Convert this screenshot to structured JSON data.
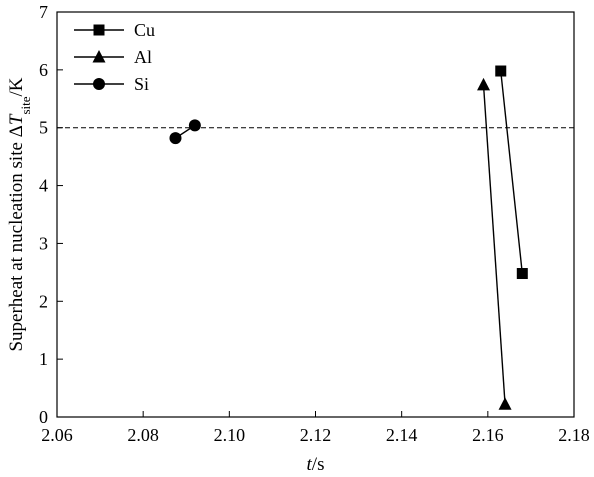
{
  "chart_data": {
    "type": "line",
    "xlabel": {
      "italic": "t",
      "rest": "/s"
    },
    "ylabel": {
      "prefix": "Superheat at nucleation site Δ",
      "italic": "T",
      "sub": "site",
      "suffix": "/K"
    },
    "xlim": [
      2.06,
      2.18
    ],
    "ylim": [
      0,
      7
    ],
    "x_ticks": [
      "2.06",
      "2.08",
      "2.10",
      "2.12",
      "2.14",
      "2.16",
      "2.18"
    ],
    "y_ticks": [
      "0",
      "1",
      "2",
      "3",
      "4",
      "5",
      "6",
      "7"
    ],
    "reference_line": {
      "y": 5,
      "style": "dashed"
    },
    "legend_position": "top-left",
    "series": [
      {
        "name": "Cu",
        "marker": "square",
        "x": [
          2.163,
          2.168
        ],
        "y": [
          5.98,
          2.48
        ]
      },
      {
        "name": "Al",
        "marker": "triangle",
        "x": [
          2.159,
          2.164
        ],
        "y": [
          5.74,
          0.22
        ]
      },
      {
        "name": "Si",
        "marker": "circle",
        "x": [
          2.0875,
          2.092
        ],
        "y": [
          4.82,
          5.04
        ]
      }
    ]
  }
}
